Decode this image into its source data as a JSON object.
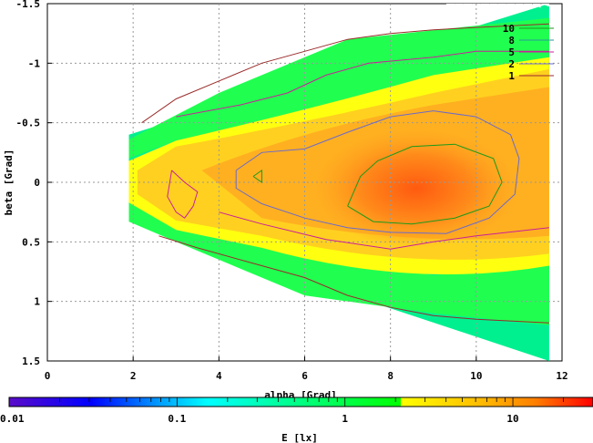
{
  "chart_data": {
    "type": "heatmap",
    "xlabel": "alpha [Grad]",
    "ylabel": "beta [Grad]",
    "xlim": [
      0,
      12
    ],
    "ylim": [
      1.5,
      -1.5
    ],
    "xticks": [
      "0",
      "2",
      "4",
      "6",
      "8",
      "10",
      "12"
    ],
    "yticks": [
      "-1.5",
      "-1",
      "-0.5",
      "0",
      "0.5",
      "1",
      "1.5"
    ],
    "grid": true,
    "contour_legend": {
      "placement": "top-right",
      "entries": [
        {
          "label": "10",
          "color": "#1a9a1a"
        },
        {
          "label": "8",
          "color": "#2a9a9a"
        },
        {
          "label": "5",
          "color": "#c8209a"
        },
        {
          "label": "2",
          "color": "#6a6acc"
        },
        {
          "label": "1",
          "color": "#9a2a2a"
        }
      ]
    },
    "colorbar": {
      "label": "E [lx]",
      "scale": "log",
      "range": [
        0.01,
        30
      ],
      "ticks": [
        "0.01",
        "0.1",
        "1",
        "10"
      ],
      "colors": [
        "#5a0cc8",
        "#0000ff",
        "#00a0ff",
        "#00ffff",
        "#00ff60",
        "#00ff00",
        "#ffff00",
        "#ffc000",
        "#ff8000",
        "#ff0000"
      ]
    },
    "region": {
      "apex_x": 1.9,
      "x_max": 11.7,
      "left_edge": [
        -0.4,
        0.33
      ],
      "right_edge": [
        -1.5,
        1.5
      ]
    }
  }
}
